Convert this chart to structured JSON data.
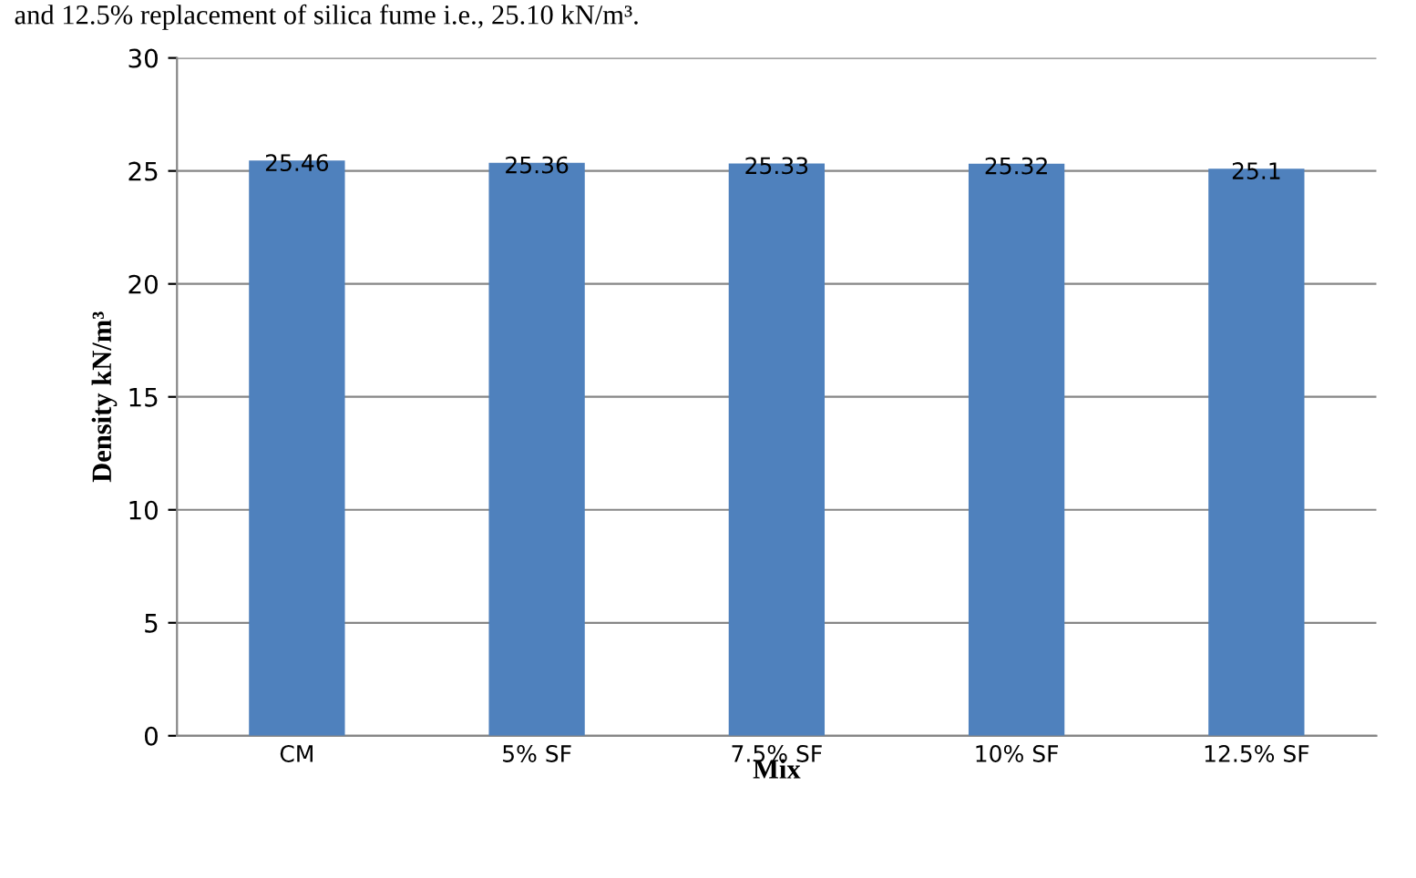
{
  "chart_data": {
    "type": "bar",
    "categories": [
      "CM",
      "5% SF",
      "7.5% SF",
      "10% SF",
      "12.5% SF"
    ],
    "values": [
      25.46,
      25.36,
      25.33,
      25.32,
      25.1
    ],
    "color": "#4f81bd",
    "xlabel": "Mix",
    "ylabel": "Density kN/m³",
    "ylim": [
      0,
      30
    ],
    "yticks": [
      0,
      5,
      10,
      15,
      20,
      25,
      30
    ],
    "grid": "y",
    "data_labels": true,
    "annotations": [
      "and 12.5% replacement of silica fume i.e., 25.10 kN/m³."
    ]
  }
}
